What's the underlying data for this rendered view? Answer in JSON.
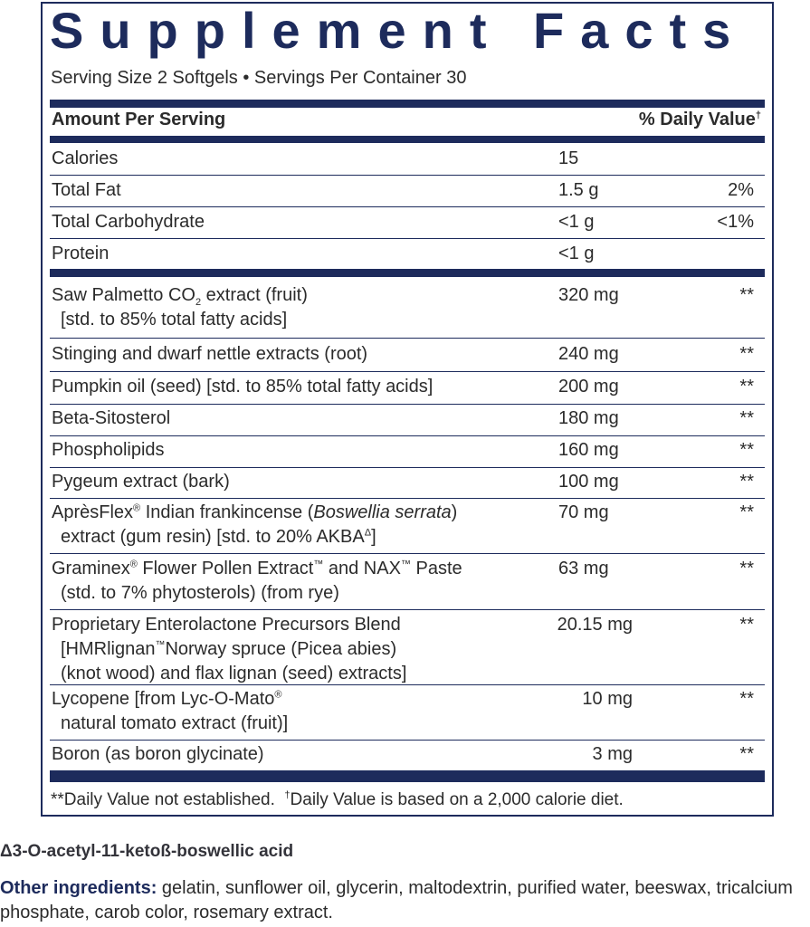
{
  "title": "Supplement Facts",
  "serving": "Serving Size 2 Softgels • Servings Per Container 30",
  "header": {
    "amount": "Amount Per Serving",
    "dv": "% Daily Value",
    "dv_mark": "†"
  },
  "nutrients": [
    {
      "name": "Calories",
      "amount": "15",
      "dv": ""
    },
    {
      "name": "Total Fat",
      "amount": "1.5 g",
      "dv": "2%"
    },
    {
      "name": "Total Carbohydrate",
      "amount": "<1 g",
      "dv": "<1%"
    },
    {
      "name": "Protein",
      "amount": "<1 g",
      "dv": ""
    }
  ],
  "ingredients": {
    "saw": {
      "l1a": "Saw Palmetto CO",
      "sub": "2",
      "l1b": " extract (fruit)",
      "l2": "[std. to 85% total fatty acids]",
      "amount": "320 mg",
      "dv": "**"
    },
    "nettle": {
      "name": "Stinging and dwarf nettle extracts (root)",
      "amount": "240 mg",
      "dv": "**"
    },
    "pumpkin": {
      "name": "Pumpkin oil (seed) [std. to 85% total fatty acids]",
      "amount": "200 mg",
      "dv": "**"
    },
    "beta": {
      "name": "Beta-Sitosterol",
      "amount": "180 mg",
      "dv": "**"
    },
    "phos": {
      "name": "Phospholipids",
      "amount": "160 mg",
      "dv": "**"
    },
    "pygeum": {
      "name": "Pygeum extract (bark)",
      "amount": "100 mg",
      "dv": "**"
    },
    "apres": {
      "a": "AprèsFlex",
      "reg": "®",
      "b": " Indian frankincense (",
      "italic": "Boswellia serrata",
      "c": ")",
      "l2": "extract (gum resin) [std. to 20% AKBA",
      "delta": "Δ",
      "l2end": "]",
      "amount": "70 mg",
      "dv": "**"
    },
    "graminex": {
      "a": "Graminex",
      "reg": "®",
      "b": " Flower Pollen Extract",
      "tm": "™",
      "c": " and NAX",
      "tm2": "™",
      "d": " Paste",
      "l2": "(std. to 7% phytosterols) (from rye)",
      "amount": "63 mg",
      "dv": "**"
    },
    "prop": {
      "l1": "Proprietary Enterolactone Precursors Blend",
      "l2a": "[HMRlignan",
      "tm": "™",
      "l2b": "Norway spruce (Picea abies)",
      "l3": "(knot wood) and flax lignan (seed) extracts]",
      "amount": "20.15 mg",
      "dv": "**"
    },
    "lyco": {
      "l1": "Lycopene [from Lyc-O-Mato",
      "reg": "®",
      "l2": "natural tomato extract (fruit)]",
      "amount": "10 mg",
      "dv": "**"
    },
    "boron": {
      "name": "Boron (as boron glycinate)",
      "amount": "3 mg",
      "dv": "**"
    }
  },
  "footnote": {
    "a": "**Daily Value not established.",
    "dagger": "†",
    "b": "Daily Value is based on a 2,000 calorie diet."
  },
  "delta_note": "Δ3-O-acetyl-11-ketoß-boswellic acid",
  "other": {
    "label": "Other ingredients:",
    "text": " gelatin, sunflower oil, glycerin, maltodextrin, purified water, beeswax, tricalcium phosphate, carob color, rosemary extract."
  },
  "colors": {
    "navy": "#1d2b5c",
    "text": "#2b2b2b"
  }
}
